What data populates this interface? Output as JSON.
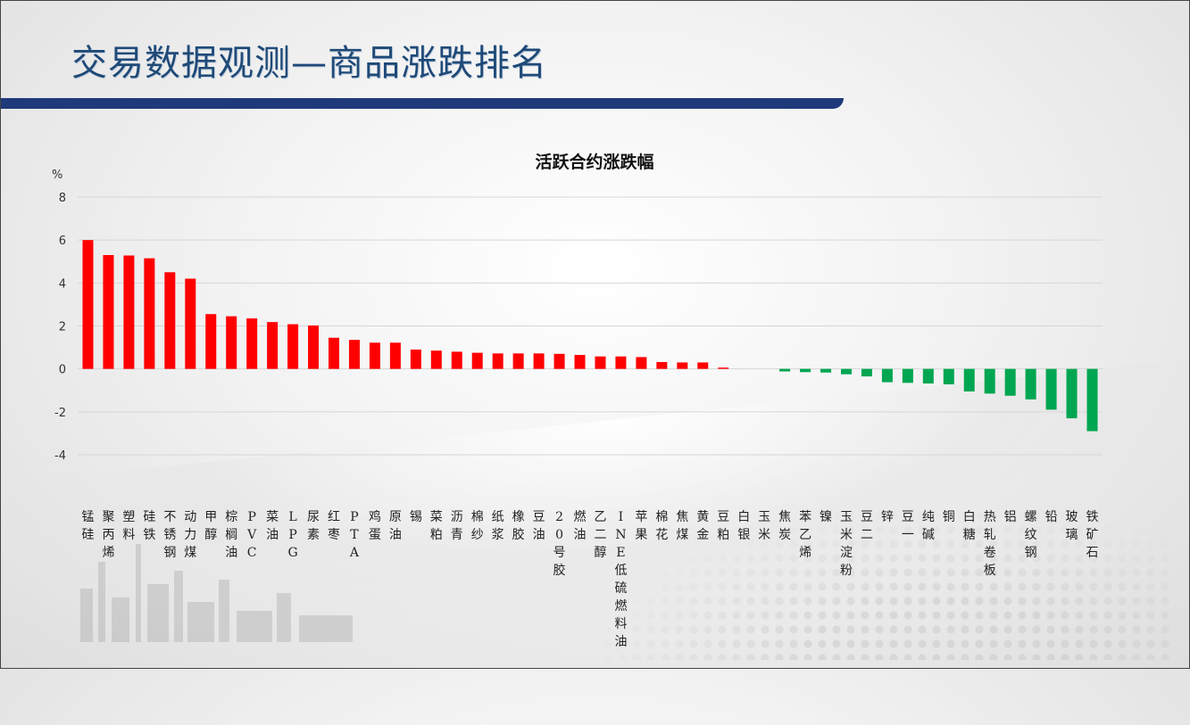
{
  "slide": {
    "title": "交易数据观测—商品涨跌排名",
    "accent_color": "#1e3a7a",
    "title_color": "#1f4a78"
  },
  "chart_data": {
    "type": "bar",
    "title": "活跃合约涨跌幅",
    "ylabel": "%",
    "xlabel": "",
    "ylim": [
      -4,
      8
    ],
    "yticks": [
      8,
      6,
      4,
      2,
      0,
      -2,
      -4
    ],
    "grid": true,
    "legend": "none",
    "positive_color": "#ff0000",
    "negative_color": "#00a651",
    "categories": [
      "锰硅",
      "聚丙烯",
      "塑料",
      "硅铁",
      "不锈钢",
      "动力煤",
      "甲醇",
      "棕榈油",
      "PVC",
      "菜油",
      "LPG",
      "尿素",
      "红枣",
      "PTA",
      "鸡蛋",
      "原油",
      "锡",
      "菜粕",
      "沥青",
      "棉纱",
      "纸浆",
      "橡胶",
      "豆油",
      "20号胶",
      "燃油",
      "乙二醇",
      "INE低硫燃料油",
      "苹果",
      "棉花",
      "焦煤",
      "黄金",
      "豆粕",
      "白银",
      "玉米",
      "焦炭",
      "苯乙烯",
      "镍",
      "玉米淀粉",
      "豆二",
      "锌",
      "豆一",
      "纯碱",
      "铜",
      "白糖",
      "热轧卷板",
      "铝",
      "螺纹钢",
      "铅",
      "玻璃",
      "铁矿石"
    ],
    "values": [
      6.0,
      5.3,
      5.28,
      5.15,
      4.5,
      4.2,
      2.55,
      2.45,
      2.35,
      2.18,
      2.08,
      2.02,
      1.45,
      1.35,
      1.22,
      1.22,
      0.9,
      0.85,
      0.8,
      0.75,
      0.72,
      0.72,
      0.72,
      0.7,
      0.65,
      0.58,
      0.58,
      0.55,
      0.32,
      0.3,
      0.3,
      0.06,
      0.0,
      0.0,
      -0.12,
      -0.15,
      -0.17,
      -0.25,
      -0.35,
      -0.62,
      -0.65,
      -0.68,
      -0.72,
      -1.05,
      -1.15,
      -1.25,
      -1.42,
      -1.9,
      -2.3,
      -2.9
    ]
  }
}
